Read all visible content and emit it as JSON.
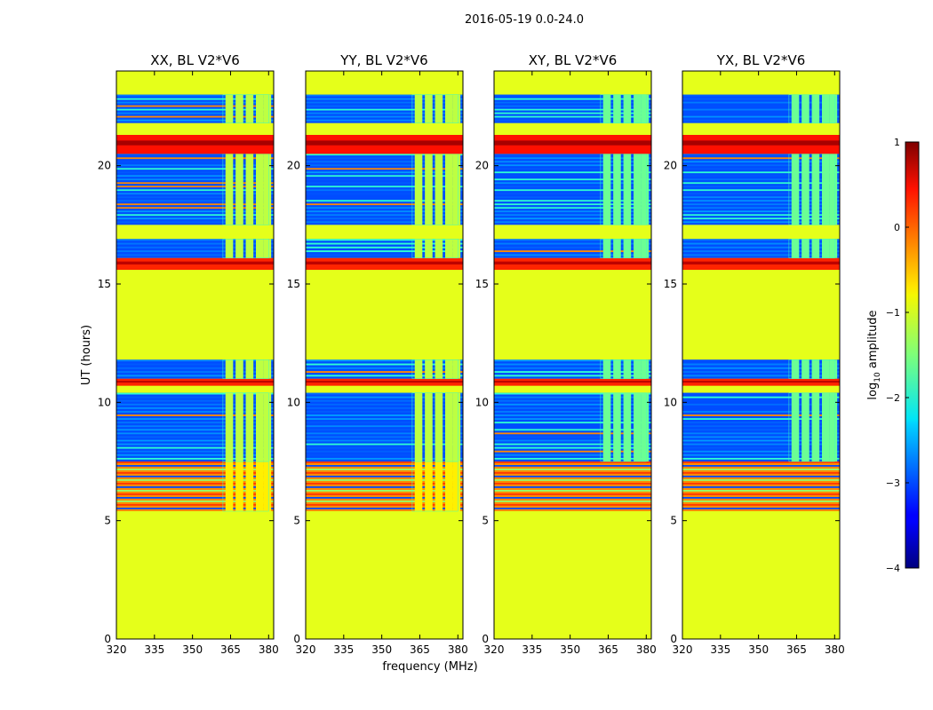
{
  "figure": {
    "suptitle": "2016-05-19 0.0-24.0",
    "ylabel": "UT (hours)",
    "xlabel": "frequency (MHz)",
    "colorbar_label_prefix": "log",
    "colorbar_label_sub": "10",
    "colorbar_label_suffix": " amplitude"
  },
  "chart_data": {
    "type": "heatmap",
    "x": {
      "label": "frequency (MHz)",
      "range": [
        320,
        382
      ],
      "ticks": [
        320,
        335,
        350,
        365,
        380
      ]
    },
    "y": {
      "label": "UT (hours)",
      "range": [
        0,
        24
      ],
      "ticks": [
        0,
        5,
        10,
        15,
        20
      ]
    },
    "colorbar": {
      "label": "log10 amplitude",
      "range": [
        -4,
        1
      ],
      "ticks": [
        -4,
        -3,
        -2,
        -1,
        0,
        1
      ],
      "colormap": "jet"
    },
    "panels": [
      {
        "title": "XX, BL V2*V6",
        "pol": "XX"
      },
      {
        "title": "YY, BL V2*V6",
        "pol": "YY"
      },
      {
        "title": "XY, BL V2*V6",
        "pol": "XY"
      },
      {
        "title": "YX, BL V2*V6",
        "pol": "YX"
      }
    ],
    "flagged_value": -1,
    "ut_bands": [
      {
        "from": 0.0,
        "to": 5.4,
        "state": "flagged"
      },
      {
        "from": 5.4,
        "to": 7.5,
        "state": "rfi-striped",
        "level": -0.3
      },
      {
        "from": 7.5,
        "to": 10.4,
        "state": "data",
        "level": -3
      },
      {
        "from": 10.4,
        "to": 10.7,
        "state": "flagged"
      },
      {
        "from": 10.7,
        "to": 11.0,
        "state": "rfi",
        "level": 0.2
      },
      {
        "from": 11.0,
        "to": 11.8,
        "state": "data",
        "level": -3
      },
      {
        "from": 11.8,
        "to": 15.6,
        "state": "flagged"
      },
      {
        "from": 15.6,
        "to": 16.1,
        "state": "rfi",
        "level": 0.2
      },
      {
        "from": 16.1,
        "to": 16.9,
        "state": "data",
        "level": -3
      },
      {
        "from": 16.9,
        "to": 17.5,
        "state": "flagged"
      },
      {
        "from": 17.5,
        "to": 20.5,
        "state": "data",
        "level": -3
      },
      {
        "from": 20.5,
        "to": 21.3,
        "state": "rfi",
        "level": 0.3
      },
      {
        "from": 21.3,
        "to": 21.8,
        "state": "flagged"
      },
      {
        "from": 21.8,
        "to": 23.0,
        "state": "data",
        "level": -3
      },
      {
        "from": 23.0,
        "to": 24.0,
        "state": "flagged"
      }
    ],
    "high_freq_band_MHz": [
      362,
      380
    ]
  }
}
